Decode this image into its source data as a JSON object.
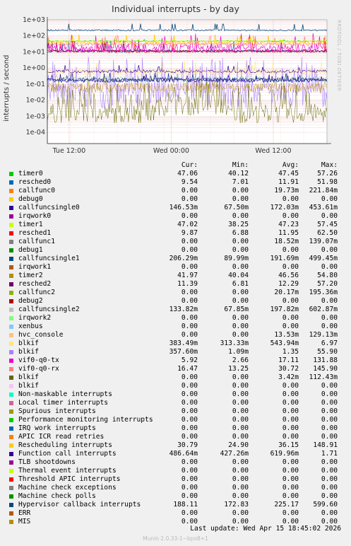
{
  "chart_data": {
    "type": "line",
    "title": "Individual interrupts - by day",
    "ylabel": "interrupts / second",
    "yscale": "log",
    "ylim": [
      2e-05,
      1000
    ],
    "y_ticks": [
      "1e+03",
      "1e+02",
      "1e+01",
      "1e+00",
      "1e-01",
      "1e-02",
      "1e-03",
      "1e-04"
    ],
    "x_ticks": [
      "Tue 12:00",
      "Wed 00:00",
      "Wed 12:00"
    ],
    "grid": true,
    "watermark": "RRDTOOL / TOBI OETIKER",
    "legend_headers": [
      "Cur:",
      "Min:",
      "Avg:",
      "Max:"
    ],
    "series": [
      {
        "name": "timer0",
        "color": "#00cc00",
        "cur": "47.06",
        "min": "40.12",
        "avg": "47.45",
        "max": "57.26"
      },
      {
        "name": "resched0",
        "color": "#0066b3",
        "cur": "9.54",
        "min": "7.01",
        "avg": "11.91",
        "max": "51.98"
      },
      {
        "name": "callfunc0",
        "color": "#ff8000",
        "cur": "0.00",
        "min": "0.00",
        "avg": "19.73m",
        "max": "221.84m"
      },
      {
        "name": "debug0",
        "color": "#ffcc00",
        "cur": "0.00",
        "min": "0.00",
        "avg": "0.00",
        "max": "0.00"
      },
      {
        "name": "callfuncsingle0",
        "color": "#330099",
        "cur": "146.53m",
        "min": "67.50m",
        "avg": "172.03m",
        "max": "453.61m"
      },
      {
        "name": "irqwork0",
        "color": "#990099",
        "cur": "0.00",
        "min": "0.00",
        "avg": "0.00",
        "max": "0.00"
      },
      {
        "name": "timer1",
        "color": "#ccff00",
        "cur": "47.02",
        "min": "38.25",
        "avg": "47.23",
        "max": "57.45"
      },
      {
        "name": "resched1",
        "color": "#ff0000",
        "cur": "9.87",
        "min": "6.88",
        "avg": "11.95",
        "max": "62.50"
      },
      {
        "name": "callfunc1",
        "color": "#808080",
        "cur": "0.00",
        "min": "0.00",
        "avg": "18.52m",
        "max": "139.07m"
      },
      {
        "name": "debug1",
        "color": "#008f00",
        "cur": "0.00",
        "min": "0.00",
        "avg": "0.00",
        "max": "0.00"
      },
      {
        "name": "callfuncsingle1",
        "color": "#00487d",
        "cur": "206.29m",
        "min": "89.99m",
        "avg": "191.69m",
        "max": "499.45m"
      },
      {
        "name": "irqwork1",
        "color": "#b35a00",
        "cur": "0.00",
        "min": "0.00",
        "avg": "0.00",
        "max": "0.00"
      },
      {
        "name": "timer2",
        "color": "#b38f00",
        "cur": "41.97",
        "min": "40.04",
        "avg": "46.56",
        "max": "54.80"
      },
      {
        "name": "resched2",
        "color": "#6b006b",
        "cur": "11.39",
        "min": "6.81",
        "avg": "12.29",
        "max": "57.20"
      },
      {
        "name": "callfunc2",
        "color": "#8fb300",
        "cur": "0.00",
        "min": "0.00",
        "avg": "20.17m",
        "max": "195.36m"
      },
      {
        "name": "debug2",
        "color": "#b30000",
        "cur": "0.00",
        "min": "0.00",
        "avg": "0.00",
        "max": "0.00"
      },
      {
        "name": "callfuncsingle2",
        "color": "#bebebe",
        "cur": "133.82m",
        "min": "67.85m",
        "avg": "197.82m",
        "max": "602.87m"
      },
      {
        "name": "irqwork2",
        "color": "#80ff80",
        "cur": "0.00",
        "min": "0.00",
        "avg": "0.00",
        "max": "0.00"
      },
      {
        "name": "xenbus",
        "color": "#80c9ff",
        "cur": "0.00",
        "min": "0.00",
        "avg": "0.00",
        "max": "0.00"
      },
      {
        "name": "hvc_console",
        "color": "#ffc080",
        "cur": "0.00",
        "min": "0.00",
        "avg": "13.53m",
        "max": "129.13m"
      },
      {
        "name": "blkif",
        "color": "#ffe680",
        "cur": "383.49m",
        "min": "313.33m",
        "avg": "543.94m",
        "max": "6.97"
      },
      {
        "name": "blkif",
        "color": "#aa80ff",
        "cur": "357.60m",
        "min": "1.09m",
        "avg": "1.35",
        "max": "55.90"
      },
      {
        "name": "vif0-q0-tx",
        "color": "#ee00cc",
        "cur": "5.92",
        "min": "2.66",
        "avg": "17.11",
        "max": "131.88"
      },
      {
        "name": "vif0-q0-rx",
        "color": "#ff8080",
        "cur": "16.47",
        "min": "13.25",
        "avg": "30.72",
        "max": "145.90"
      },
      {
        "name": "blkif",
        "color": "#666600",
        "cur": "0.00",
        "min": "0.00",
        "avg": "3.42m",
        "max": "112.43m"
      },
      {
        "name": "blkif",
        "color": "#ffbfff",
        "cur": "0.00",
        "min": "0.00",
        "avg": "0.00",
        "max": "0.00"
      },
      {
        "name": "Non-maskable interrupts",
        "color": "#00ffcc",
        "cur": "0.00",
        "min": "0.00",
        "avg": "0.00",
        "max": "0.00"
      },
      {
        "name": "Local timer interrupts",
        "color": "#cc6699",
        "cur": "0.00",
        "min": "0.00",
        "avg": "0.00",
        "max": "0.00"
      },
      {
        "name": "Spurious interrupts",
        "color": "#999900",
        "cur": "0.00",
        "min": "0.00",
        "avg": "0.00",
        "max": "0.00"
      },
      {
        "name": "Performance monitoring interrupts",
        "color": "#00cc00",
        "cur": "0.00",
        "min": "0.00",
        "avg": "0.00",
        "max": "0.00"
      },
      {
        "name": "IRQ work interrupts",
        "color": "#0066b3",
        "cur": "0.00",
        "min": "0.00",
        "avg": "0.00",
        "max": "0.00"
      },
      {
        "name": "APIC ICR read retries",
        "color": "#ff8000",
        "cur": "0.00",
        "min": "0.00",
        "avg": "0.00",
        "max": "0.00"
      },
      {
        "name": "Rescheduling interrupts",
        "color": "#ffcc00",
        "cur": "30.79",
        "min": "24.90",
        "avg": "36.15",
        "max": "148.91"
      },
      {
        "name": "Function call interrupts",
        "color": "#330099",
        "cur": "486.64m",
        "min": "427.26m",
        "avg": "619.96m",
        "max": "1.71"
      },
      {
        "name": "TLB shootdowns",
        "color": "#990099",
        "cur": "0.00",
        "min": "0.00",
        "avg": "0.00",
        "max": "0.00"
      },
      {
        "name": "Thermal event interrupts",
        "color": "#ccff00",
        "cur": "0.00",
        "min": "0.00",
        "avg": "0.00",
        "max": "0.00"
      },
      {
        "name": "Threshold APIC interrupts",
        "color": "#ff0000",
        "cur": "0.00",
        "min": "0.00",
        "avg": "0.00",
        "max": "0.00"
      },
      {
        "name": "Machine check exceptions",
        "color": "#808080",
        "cur": "0.00",
        "min": "0.00",
        "avg": "0.00",
        "max": "0.00"
      },
      {
        "name": "Machine check polls",
        "color": "#008f00",
        "cur": "0.00",
        "min": "0.00",
        "avg": "0.00",
        "max": "0.00"
      },
      {
        "name": "Hypervisor callback interrupts",
        "color": "#00487d",
        "cur": "188.11",
        "min": "172.83",
        "avg": "225.17",
        "max": "599.60"
      },
      {
        "name": "ERR",
        "color": "#b35a00",
        "cur": "0.00",
        "min": "0.00",
        "avg": "0.00",
        "max": "0.00"
      },
      {
        "name": "MIS",
        "color": "#b38f00",
        "cur": "0.00",
        "min": "0.00",
        "avg": "0.00",
        "max": "0.00"
      }
    ]
  },
  "last_update": "Last update:  Wed Apr 15 18:45:02 2026",
  "footer": "Munin 2.0.33-1~bpo8+1"
}
